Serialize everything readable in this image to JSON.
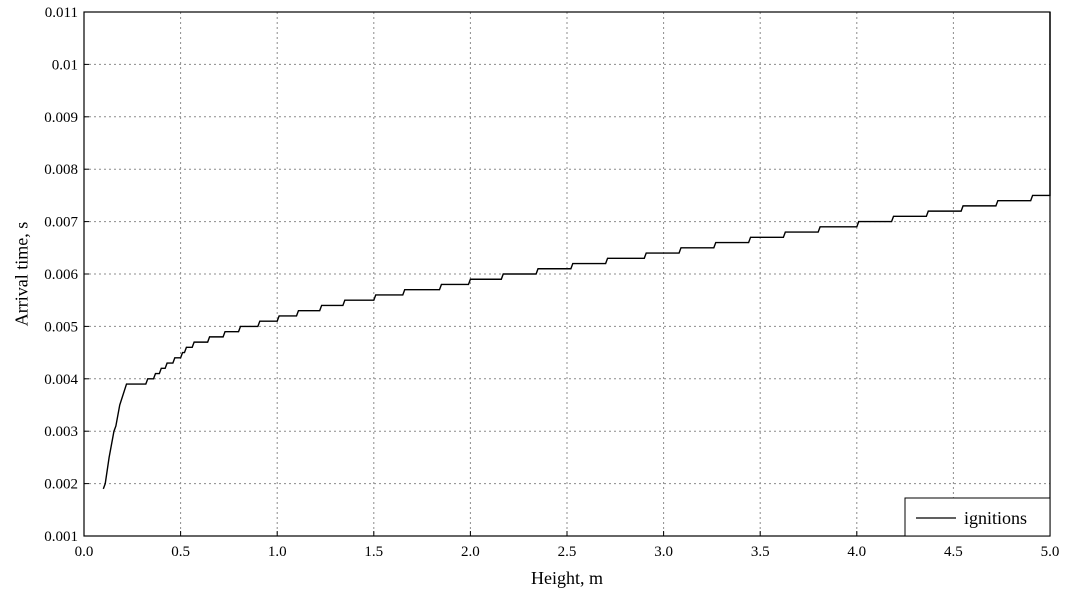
{
  "chart_data": {
    "type": "line",
    "title": "",
    "xlabel": "Height, m",
    "ylabel": "Arrival time, s",
    "xlim": [
      0.0,
      5.0
    ],
    "ylim": [
      0.001,
      0.011
    ],
    "x_ticks": [
      "0.0",
      "0.5",
      "1.0",
      "1.5",
      "2.0",
      "2.5",
      "3.0",
      "3.5",
      "4.0",
      "4.5",
      "5.0"
    ],
    "y_ticks": [
      "0.001",
      "0.002",
      "0.003",
      "0.004",
      "0.005",
      "0.006",
      "0.007",
      "0.008",
      "0.009",
      "0.01",
      "0.011"
    ],
    "grid": true,
    "legend_position": "bottom-right",
    "series": [
      {
        "name": "ignitions",
        "color": "#000000",
        "points": [
          [
            0.1,
            0.0019
          ],
          [
            0.11,
            0.002
          ],
          [
            0.13,
            0.0025
          ],
          [
            0.155,
            0.003
          ],
          [
            0.165,
            0.0031
          ],
          [
            0.185,
            0.0035
          ],
          [
            0.22,
            0.0039
          ],
          [
            0.32,
            0.0039
          ],
          [
            0.33,
            0.004
          ],
          [
            0.36,
            0.004
          ],
          [
            0.37,
            0.0041
          ],
          [
            0.39,
            0.0041
          ],
          [
            0.4,
            0.0042
          ],
          [
            0.42,
            0.0042
          ],
          [
            0.43,
            0.0043
          ],
          [
            0.46,
            0.0043
          ],
          [
            0.47,
            0.0044
          ],
          [
            0.5,
            0.0044
          ],
          [
            0.51,
            0.0045
          ],
          [
            0.52,
            0.0045
          ],
          [
            0.53,
            0.0046
          ],
          [
            0.56,
            0.0046
          ],
          [
            0.57,
            0.0047
          ],
          [
            0.64,
            0.0047
          ],
          [
            0.65,
            0.0048
          ],
          [
            0.72,
            0.0048
          ],
          [
            0.73,
            0.0049
          ],
          [
            0.8,
            0.0049
          ],
          [
            0.81,
            0.005
          ],
          [
            0.9,
            0.005
          ],
          [
            0.91,
            0.0051
          ],
          [
            1.0,
            0.0051
          ],
          [
            1.01,
            0.0052
          ],
          [
            1.1,
            0.0052
          ],
          [
            1.11,
            0.0053
          ],
          [
            1.22,
            0.0053
          ],
          [
            1.23,
            0.0054
          ],
          [
            1.34,
            0.0054
          ],
          [
            1.35,
            0.0055
          ],
          [
            1.5,
            0.0055
          ],
          [
            1.51,
            0.0056
          ],
          [
            1.65,
            0.0056
          ],
          [
            1.66,
            0.0057
          ],
          [
            1.84,
            0.0057
          ],
          [
            1.85,
            0.0058
          ],
          [
            1.99,
            0.0058
          ],
          [
            2.0,
            0.0059
          ],
          [
            2.16,
            0.0059
          ],
          [
            2.17,
            0.006
          ],
          [
            2.34,
            0.006
          ],
          [
            2.35,
            0.0061
          ],
          [
            2.52,
            0.0061
          ],
          [
            2.53,
            0.0062
          ],
          [
            2.7,
            0.0062
          ],
          [
            2.71,
            0.0063
          ],
          [
            2.9,
            0.0063
          ],
          [
            2.91,
            0.0064
          ],
          [
            3.08,
            0.0064
          ],
          [
            3.09,
            0.0065
          ],
          [
            3.26,
            0.0065
          ],
          [
            3.27,
            0.0066
          ],
          [
            3.44,
            0.0066
          ],
          [
            3.45,
            0.0067
          ],
          [
            3.62,
            0.0067
          ],
          [
            3.63,
            0.0068
          ],
          [
            3.8,
            0.0068
          ],
          [
            3.81,
            0.0069
          ],
          [
            4.0,
            0.0069
          ],
          [
            4.01,
            0.007
          ],
          [
            4.18,
            0.007
          ],
          [
            4.19,
            0.0071
          ],
          [
            4.36,
            0.0071
          ],
          [
            4.37,
            0.0072
          ],
          [
            4.54,
            0.0072
          ],
          [
            4.55,
            0.0073
          ],
          [
            4.72,
            0.0073
          ],
          [
            4.73,
            0.0074
          ],
          [
            4.9,
            0.0074
          ],
          [
            4.91,
            0.0075
          ],
          [
            4.99,
            0.0075
          ],
          [
            5.0,
            0.0075
          ],
          [
            5.0,
            0.011
          ]
        ]
      }
    ]
  }
}
